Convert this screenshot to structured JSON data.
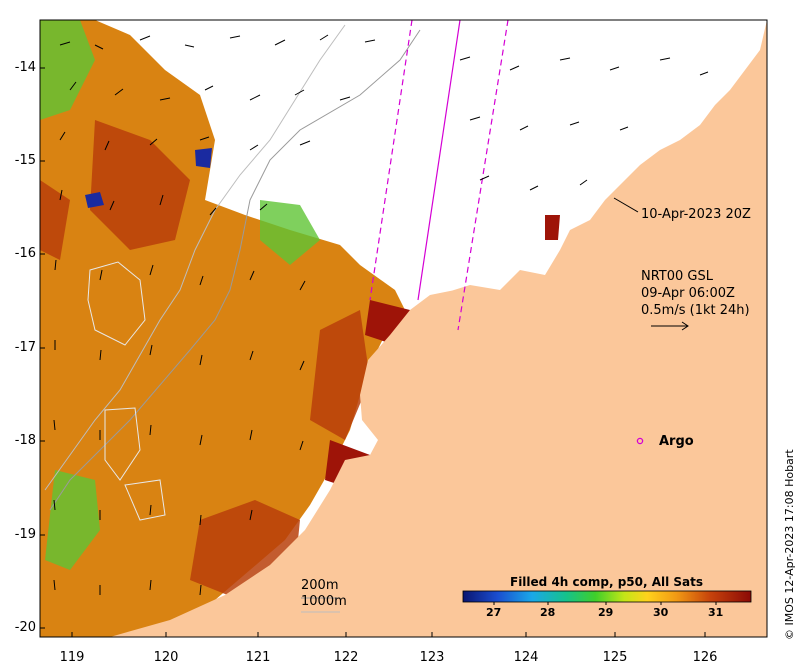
{
  "chart_data": {
    "type": "heatmap",
    "title": "Filled 4h comp, p50, All Sats",
    "x_ticks": [
      "119",
      "120",
      "121",
      "122",
      "123",
      "124",
      "125",
      "126"
    ],
    "y_ticks": [
      "-14",
      "-15",
      "-16",
      "-17",
      "-18",
      "-19",
      "-20"
    ],
    "xlim": [
      118.6,
      126.8
    ],
    "ylim": [
      -20.1,
      -13.6
    ],
    "colorbar": {
      "ticks": [
        "27",
        "28",
        "29",
        "30",
        "31"
      ],
      "range": [
        26.3,
        31.7
      ]
    },
    "colors": {
      "land": "#fbc79a",
      "sst_low": "#0a1570",
      "sst_high": "#8b0a06",
      "track": "#d400d4",
      "argo": "#d400d4"
    }
  },
  "annotations": {
    "date_label": "10-Apr-2023 20Z",
    "model_name": "NRT00 GSL",
    "model_time": "09-Apr 06:00Z",
    "vector_scale": "0.5m/s (1kt 24h)",
    "argo_label": "Argo",
    "contour_200": "200m",
    "contour_1000": "1000m",
    "credit": "© IMOS 12-Apr-2023 17:08 Hobart"
  }
}
